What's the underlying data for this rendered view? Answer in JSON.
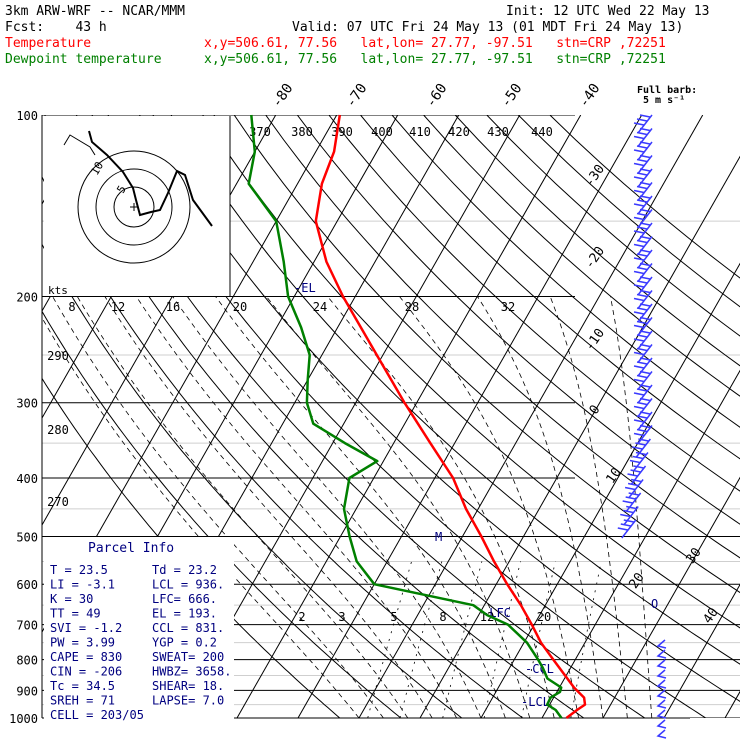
{
  "header": {
    "title": "3km ARW-WRF -- NCAR/MMM",
    "init": "Init: 12 UTC Wed 22 May 13",
    "fcst": "Fcst:    43 h",
    "valid": "Valid: 07 UTC Fri 24 May 13 (01 MDT Fri 24 May 13)",
    "temp_label": "Temperature",
    "dew_label": "Dewpoint temperature",
    "temp_info": "x,y=506.61, 77.56   lat,lon= 27.77, -97.51   stn=CRP ,72251",
    "dew_info": "x,y=506.61, 77.56   lat,lon= 27.77, -97.51   stn=CRP ,72251",
    "barb_note_1": "Full barb:",
    "barb_note_2": "5 m s⁻¹"
  },
  "colors": {
    "temperature": "#ff0000",
    "dewpoint": "#008000",
    "info_text": "#000080",
    "barbs": "#3a3aff"
  },
  "parcel_info": {
    "title": "Parcel Info",
    "rows": [
      {
        "a": "T  =     23.5",
        "b": "Td =  23.2"
      },
      {
        "a": "LI =     -3.1",
        "b": "LCL =  936."
      },
      {
        "a": "K  =       30",
        "b": "LFC=  666."
      },
      {
        "a": "TT =       49",
        "b": "EL =  193."
      },
      {
        "a": "SVI =    -1.2",
        "b": "CCL =  831."
      },
      {
        "a": "PW =     3.99",
        "b": "YGP =   0.2"
      },
      {
        "a": "CAPE =    830",
        "b": "SWEAT=  200"
      },
      {
        "a": "CIN =    -206",
        "b": "HWBZ= 3658."
      },
      {
        "a": "Tc =     34.5",
        "b": "SHEAR=  18."
      },
      {
        "a": "SREH =     71",
        "b": "LAPSE=  7.0"
      },
      {
        "a": "CELL = 203/05",
        "b": ""
      }
    ]
  },
  "hodograph": {
    "unit": "kts",
    "ring_labels": [
      "5",
      "10"
    ],
    "note": "hodograph from model winds"
  },
  "markers": {
    "el": "-EL",
    "lfc": "-LFC",
    "ccl": "-CCL",
    "lcl": "-LCL",
    "m": "M",
    "ring_o": "O"
  },
  "chart_data": {
    "type": "line",
    "diagram": "skew-T log-p",
    "y_axis": {
      "quantity": "pressure (hPa)",
      "scale": "log",
      "range": [
        1000,
        100
      ],
      "ticks": [
        100,
        200,
        300,
        400,
        500,
        600,
        700,
        800,
        900,
        1000
      ]
    },
    "isotherm_labels_top": [
      "-80",
      "-70",
      "-60",
      "-50",
      "-40"
    ],
    "isotherm_labels_right": [
      "-30",
      "-20",
      "-10",
      "0",
      "10",
      "20",
      "30",
      "40"
    ],
    "dry_adiabat_labels": [
      "370",
      "380",
      "390",
      "400",
      "410",
      "420",
      "430",
      "440"
    ],
    "dry_adiabat_labels_left": [
      "290",
      "280",
      "270"
    ],
    "mixing_ratio_labels_top": [
      "8",
      "12",
      "16",
      "20",
      "24",
      "28",
      "32"
    ],
    "mixing_ratio_labels_low": [
      "2",
      "3",
      "5",
      "8",
      "12",
      "20"
    ],
    "series": [
      {
        "name": "Temperature",
        "pressure": [
          1000,
          970,
          950,
          925,
          905,
          890,
          850,
          800,
          750,
          700,
          650,
          600,
          550,
          500,
          450,
          400,
          350,
          300,
          250,
          200,
          175,
          150,
          130,
          115,
          100
        ],
        "values": [
          24.0,
          25.0,
          25.8,
          25.0,
          23.5,
          22.4,
          19.8,
          16.4,
          12.8,
          9.6,
          6.0,
          1.8,
          -2.5,
          -6.9,
          -12.0,
          -17.0,
          -24.0,
          -32.0,
          -41.0,
          -52.0,
          -58.0,
          -63.5,
          -66.0,
          -67.0,
          -69.5
        ]
      },
      {
        "name": "Dewpoint temperature",
        "pressure": [
          1000,
          970,
          950,
          925,
          905,
          890,
          860,
          825,
          800,
          750,
          700,
          675,
          650,
          600,
          550,
          500,
          450,
          400,
          375,
          350,
          325,
          300,
          275,
          250,
          225,
          200,
          175,
          150,
          130,
          115,
          100
        ],
        "values": [
          23.2,
          21.5,
          19.6,
          19.5,
          20.5,
          20.3,
          17.2,
          15.4,
          13.9,
          10.5,
          5.7,
          1.4,
          -1.8,
          -20.0,
          -25.0,
          -28.5,
          -32.0,
          -34.0,
          -31.0,
          -38.0,
          -45.0,
          -48.0,
          -50.0,
          -52.0,
          -56.0,
          -61.0,
          -65.0,
          -70.0,
          -78.0,
          -80.0,
          -84.0
        ]
      }
    ],
    "wind_barbs": "profile of wind barbs along the right edge (full barb = 5 m s-1)"
  }
}
